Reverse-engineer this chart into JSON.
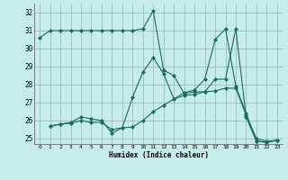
{
  "background_color": "#c5ece8",
  "grid_color": "#9bbfbb",
  "line_color": "#1a6b60",
  "xlabel": "Humidex (Indice chaleur)",
  "xlim": [
    -0.5,
    23.5
  ],
  "ylim": [
    24.7,
    32.5
  ],
  "yticks": [
    25,
    26,
    27,
    28,
    29,
    30,
    31,
    32
  ],
  "xticks": [
    0,
    1,
    2,
    3,
    4,
    5,
    6,
    7,
    8,
    9,
    10,
    11,
    12,
    13,
    14,
    15,
    16,
    17,
    18,
    19,
    20,
    21,
    22,
    23
  ],
  "series": [
    {
      "x": [
        0,
        1,
        2,
        3,
        4,
        5,
        6,
        7,
        8,
        9,
        10,
        11,
        12,
        13,
        14,
        15,
        16,
        17,
        18,
        19,
        20,
        21,
        22,
        23
      ],
      "y": [
        30.6,
        31.0,
        31.0,
        31.0,
        31.0,
        31.0,
        31.0,
        31.0,
        31.0,
        31.0,
        31.1,
        32.1,
        28.8,
        28.5,
        27.5,
        27.6,
        27.6,
        28.3,
        28.3,
        31.1,
        26.2,
        24.85,
        24.8,
        24.9
      ]
    },
    {
      "x": [
        1,
        2,
        3,
        4,
        5,
        6,
        7,
        8,
        9,
        10,
        11,
        12,
        13,
        14,
        15,
        16,
        17,
        18,
        19,
        20,
        21,
        22,
        23
      ],
      "y": [
        25.7,
        25.8,
        25.85,
        26.0,
        25.9,
        25.9,
        25.5,
        25.6,
        25.65,
        26.0,
        26.5,
        26.85,
        27.2,
        27.4,
        27.45,
        27.6,
        27.65,
        27.8,
        27.8,
        26.3,
        25.0,
        24.85,
        24.9
      ]
    },
    {
      "x": [
        1,
        2,
        3,
        4,
        5,
        6,
        7,
        8,
        9,
        10,
        11,
        12,
        13,
        14,
        15,
        16,
        17,
        18,
        19,
        20,
        21,
        22,
        23
      ],
      "y": [
        25.7,
        25.8,
        25.9,
        26.2,
        26.1,
        26.0,
        25.3,
        25.6,
        27.3,
        28.7,
        29.5,
        28.6,
        27.2,
        27.55,
        27.7,
        28.3,
        30.5,
        31.1,
        27.9,
        26.4,
        24.85,
        24.8,
        24.9
      ]
    }
  ]
}
